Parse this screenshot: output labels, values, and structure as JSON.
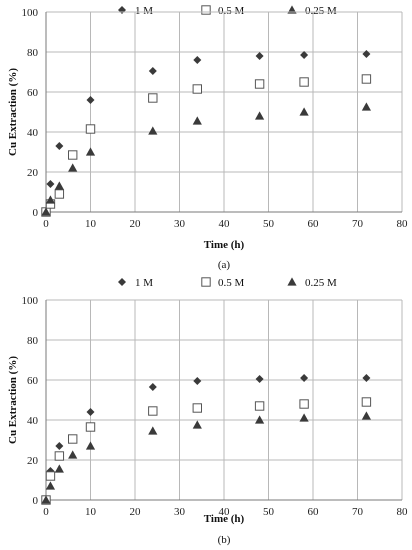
{
  "colors": {
    "grid": "#b8b8b8",
    "axis": "#7a7a7a",
    "marker_fill": "#3a3a3a",
    "open_marker_stroke": "#555555"
  },
  "chart_data": [
    {
      "type": "scatter",
      "panel_label": "(a)",
      "xlabel": "Time (h)",
      "ylabel": "Cu Extraction (%)",
      "xlim": [
        0,
        80
      ],
      "ylim": [
        0,
        100
      ],
      "xticks": [
        0,
        10,
        20,
        30,
        40,
        50,
        60,
        70,
        80
      ],
      "yticks": [
        0,
        20,
        40,
        60,
        80,
        100
      ],
      "grid": true,
      "legend_position": "top",
      "series": [
        {
          "name": "1 M",
          "marker": "diamond",
          "x": [
            0,
            1,
            3,
            10,
            24,
            34,
            48,
            58,
            72
          ],
          "y": [
            0,
            14,
            33,
            56,
            70.5,
            76,
            78,
            78.5,
            79
          ]
        },
        {
          "name": "0.5 M",
          "marker": "square",
          "x": [
            0,
            1,
            3,
            6,
            10,
            24,
            34,
            48,
            58,
            72
          ],
          "y": [
            0,
            4,
            9,
            28.5,
            41.5,
            57,
            61.5,
            64,
            65,
            66.5
          ]
        },
        {
          "name": "0.25 M",
          "marker": "triangle",
          "x": [
            0,
            1,
            3,
            6,
            10,
            24,
            34,
            48,
            58,
            72
          ],
          "y": [
            0,
            6,
            13,
            22,
            30,
            40.5,
            45.5,
            48,
            50,
            52.5
          ]
        }
      ]
    },
    {
      "type": "scatter",
      "panel_label": "(b)",
      "xlabel": "Time (h)",
      "ylabel": "Cu Extraction (%)",
      "xlim": [
        0,
        80
      ],
      "ylim": [
        0,
        100
      ],
      "xticks": [
        0,
        10,
        20,
        30,
        40,
        50,
        60,
        70,
        80
      ],
      "yticks": [
        0,
        20,
        40,
        60,
        80,
        100
      ],
      "grid": true,
      "legend_position": "top",
      "series": [
        {
          "name": "1 M",
          "marker": "diamond",
          "x": [
            0,
            1,
            3,
            10,
            24,
            34,
            48,
            58,
            72
          ],
          "y": [
            0,
            14.5,
            27,
            44,
            56.5,
            59.5,
            60.5,
            61,
            61
          ]
        },
        {
          "name": "0.5 M",
          "marker": "square",
          "x": [
            0,
            1,
            3,
            6,
            10,
            24,
            34,
            48,
            58,
            72
          ],
          "y": [
            0,
            12,
            22,
            30.5,
            36.5,
            44.5,
            46,
            47,
            48,
            49
          ]
        },
        {
          "name": "0.25 M",
          "marker": "triangle",
          "x": [
            0,
            1,
            3,
            6,
            10,
            24,
            34,
            48,
            58,
            72
          ],
          "y": [
            0,
            7,
            15.5,
            22.5,
            27,
            34.5,
            37.5,
            40,
            41,
            42
          ]
        }
      ]
    }
  ]
}
